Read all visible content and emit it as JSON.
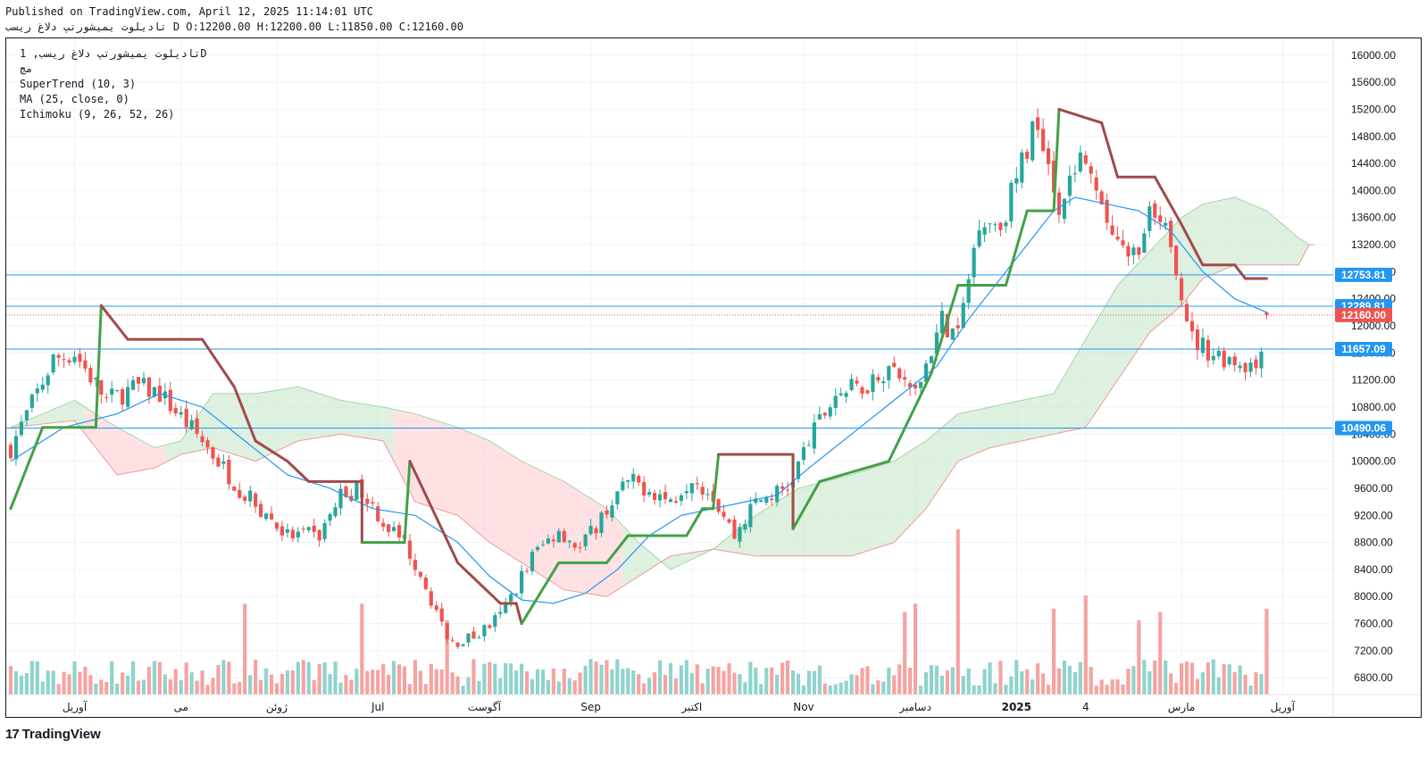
{
  "header": {
    "published": "Published on TradingView.com, April 12, 2025 11:14:01 UTC",
    "ohlc": "تادیلوت یمیشورتپ دلاغ ریسب D O:12200.00 H:12200.00 L:11850.00 C:12160.00"
  },
  "legend": {
    "symbol": "تادیلوت یمیشورتپ دلاغ ریسب, 1D",
    "sub": "مچ",
    "supertrend": "SuperTrend (10, 3)",
    "ma": "MA (25, close, 0)",
    "ichimoku": "Ichimoku (9, 26, 52, 26)"
  },
  "logo": {
    "text": "TradingView",
    "mark": "17"
  },
  "colors": {
    "up": "#26a69a",
    "down": "#ef5350",
    "up_vol": "#8fd3cc",
    "down_vol": "#f5a3a1",
    "supertrend_up": "#43a047",
    "supertrend_down": "#a04a4a",
    "ma": "#2196f3",
    "cloud_green": "#c8e6c9",
    "cloud_red": "#ffcdd2",
    "hline": "#2196f3",
    "price": "#ef5350"
  },
  "chart_data": {
    "type": "candlestick",
    "ylim": [
      6500,
      16250
    ],
    "y_ticks": [
      "16000.00",
      "15600.00",
      "15200.00",
      "14800.00",
      "14400.00",
      "14000.00",
      "13600.00",
      "13200.00",
      "12800.00",
      "12400.00",
      "12000.00",
      "11600.00",
      "11200.00",
      "10800.00",
      "10400.00",
      "10000.00",
      "9600.00",
      "9200.00",
      "8800.00",
      "8400.00",
      "8000.00",
      "7600.00",
      "7200.00",
      "6800.00"
    ],
    "x_labels": [
      "آوریل",
      "می",
      "ژوئن",
      "Jul",
      "آگوست",
      "Sep",
      "اکتبر",
      "Nov",
      "دسامبر",
      "2025",
      "4",
      "مارس",
      "آوریل"
    ],
    "horizontal_levels": [
      {
        "label": "12753.81",
        "value": 12753.81
      },
      {
        "label": "12289.81",
        "value": 12289.81
      },
      {
        "label": "11657.09",
        "value": 11657.09
      },
      {
        "label": "10490.06",
        "value": 10490.06
      }
    ],
    "last_price": {
      "label": "12160.00",
      "value": 12160.0
    },
    "last_ohlc": {
      "open": 12200.0,
      "high": 12200.0,
      "low": 11850.0,
      "close": 12160.0
    },
    "close_anchors": [
      [
        0,
        10200
      ],
      [
        8,
        11500
      ],
      [
        12,
        11600
      ],
      [
        18,
        10900
      ],
      [
        24,
        11100
      ],
      [
        28,
        11000
      ],
      [
        36,
        10300
      ],
      [
        44,
        9500
      ],
      [
        52,
        8900
      ],
      [
        58,
        8900
      ],
      [
        62,
        9500
      ],
      [
        66,
        9600
      ],
      [
        70,
        9100
      ],
      [
        74,
        8800
      ],
      [
        78,
        8200
      ],
      [
        82,
        7300
      ],
      [
        87,
        7400
      ],
      [
        92,
        7700
      ],
      [
        98,
        8600
      ],
      [
        103,
        9000
      ],
      [
        107,
        8700
      ],
      [
        112,
        9300
      ],
      [
        116,
        9700
      ],
      [
        120,
        9600
      ],
      [
        124,
        9400
      ],
      [
        128,
        9800
      ],
      [
        132,
        9500
      ],
      [
        136,
        8900
      ],
      [
        140,
        9400
      ],
      [
        146,
        9600
      ],
      [
        150,
        10300
      ],
      [
        155,
        11000
      ],
      [
        160,
        11100
      ],
      [
        165,
        11400
      ],
      [
        170,
        11000
      ],
      [
        175,
        12100
      ],
      [
        178,
        11800
      ],
      [
        182,
        13600
      ],
      [
        186,
        13500
      ],
      [
        190,
        14400
      ],
      [
        193,
        15100
      ],
      [
        197,
        13800
      ],
      [
        201,
        14500
      ],
      [
        205,
        13700
      ],
      [
        210,
        12900
      ],
      [
        214,
        13600
      ],
      [
        218,
        13300
      ],
      [
        222,
        11800
      ],
      [
        226,
        11600
      ],
      [
        230,
        11500
      ],
      [
        234,
        11400
      ],
      [
        236,
        12160
      ]
    ],
    "supertrend": [
      [
        0,
        9300,
        "up"
      ],
      [
        6,
        10500,
        "up"
      ],
      [
        16,
        10500,
        "up"
      ],
      [
        17,
        12300,
        "down"
      ],
      [
        22,
        11800,
        "down"
      ],
      [
        36,
        11800,
        "down"
      ],
      [
        42,
        11100,
        "down"
      ],
      [
        46,
        10300,
        "down"
      ],
      [
        52,
        10000,
        "down"
      ],
      [
        56,
        9700,
        "down"
      ],
      [
        66,
        9700,
        "down"
      ],
      [
        66,
        8800,
        "up"
      ],
      [
        74,
        8800,
        "up"
      ],
      [
        75,
        10000,
        "down"
      ],
      [
        84,
        8500,
        "down"
      ],
      [
        92,
        7900,
        "down"
      ],
      [
        95,
        7900,
        "down"
      ],
      [
        96,
        7600,
        "up"
      ],
      [
        103,
        8500,
        "up"
      ],
      [
        112,
        8500,
        "up"
      ],
      [
        116,
        8900,
        "up"
      ],
      [
        127,
        8900,
        "up"
      ],
      [
        130,
        9300,
        "up"
      ],
      [
        132,
        9300,
        "up"
      ],
      [
        133,
        10100,
        "down"
      ],
      [
        147,
        10100,
        "down"
      ],
      [
        147,
        9000,
        "up"
      ],
      [
        152,
        9700,
        "up"
      ],
      [
        165,
        10000,
        "up"
      ],
      [
        173,
        11300,
        "up"
      ],
      [
        178,
        12600,
        "up"
      ],
      [
        187,
        12600,
        "up"
      ],
      [
        191,
        13700,
        "up"
      ],
      [
        196,
        13700,
        "up"
      ],
      [
        197,
        15200,
        "down"
      ],
      [
        205,
        15000,
        "down"
      ],
      [
        208,
        14200,
        "down"
      ],
      [
        215,
        14200,
        "down"
      ],
      [
        220,
        13500,
        "down"
      ],
      [
        224,
        12900,
        "down"
      ],
      [
        230,
        12900,
        "down"
      ],
      [
        232,
        12700,
        "down"
      ],
      [
        236,
        12700,
        "down"
      ]
    ],
    "ma25": [
      [
        0,
        10000
      ],
      [
        10,
        10500
      ],
      [
        20,
        10700
      ],
      [
        28,
        11000
      ],
      [
        36,
        10800
      ],
      [
        44,
        10300
      ],
      [
        52,
        9800
      ],
      [
        60,
        9600
      ],
      [
        68,
        9300
      ],
      [
        76,
        9200
      ],
      [
        84,
        8800
      ],
      [
        90,
        8300
      ],
      [
        96,
        7950
      ],
      [
        102,
        7900
      ],
      [
        108,
        8050
      ],
      [
        114,
        8400
      ],
      [
        120,
        8900
      ],
      [
        126,
        9200
      ],
      [
        132,
        9300
      ],
      [
        138,
        9400
      ],
      [
        144,
        9500
      ],
      [
        150,
        9900
      ],
      [
        158,
        10400
      ],
      [
        166,
        10900
      ],
      [
        174,
        11400
      ],
      [
        180,
        12100
      ],
      [
        186,
        12700
      ],
      [
        192,
        13300
      ],
      [
        196,
        13700
      ],
      [
        200,
        13900
      ],
      [
        206,
        13800
      ],
      [
        212,
        13700
      ],
      [
        218,
        13400
      ],
      [
        224,
        12800
      ],
      [
        230,
        12400
      ],
      [
        236,
        12200
      ]
    ],
    "cloud_top": [
      [
        0,
        10500
      ],
      [
        12,
        10900
      ],
      [
        20,
        10500
      ],
      [
        27,
        10200
      ],
      [
        32,
        10300
      ],
      [
        38,
        11000
      ],
      [
        46,
        11000
      ],
      [
        54,
        11100
      ],
      [
        62,
        10900
      ],
      [
        70,
        10800
      ],
      [
        76,
        10700
      ],
      [
        84,
        10500
      ],
      [
        90,
        10300
      ],
      [
        96,
        10000
      ],
      [
        104,
        9700
      ],
      [
        112,
        9300
      ],
      [
        118,
        8800
      ],
      [
        124,
        8400
      ],
      [
        132,
        8700
      ],
      [
        140,
        9200
      ],
      [
        148,
        9600
      ],
      [
        158,
        9800
      ],
      [
        166,
        10000
      ],
      [
        172,
        10300
      ],
      [
        178,
        10700
      ],
      [
        184,
        10800
      ],
      [
        190,
        10900
      ],
      [
        196,
        11000
      ],
      [
        202,
        11800
      ],
      [
        208,
        12600
      ],
      [
        214,
        13100
      ],
      [
        220,
        13600
      ],
      [
        224,
        13800
      ],
      [
        230,
        13900
      ],
      [
        236,
        13700
      ],
      [
        242,
        13300
      ],
      [
        244,
        13200
      ]
    ],
    "cloud_bottom": [
      [
        0,
        10500
      ],
      [
        12,
        10600
      ],
      [
        20,
        9800
      ],
      [
        27,
        9900
      ],
      [
        32,
        10100
      ],
      [
        38,
        10200
      ],
      [
        46,
        10000
      ],
      [
        54,
        10300
      ],
      [
        62,
        10400
      ],
      [
        70,
        10300
      ],
      [
        76,
        9400
      ],
      [
        84,
        9200
      ],
      [
        90,
        8800
      ],
      [
        96,
        8500
      ],
      [
        104,
        8100
      ],
      [
        112,
        8000
      ],
      [
        118,
        8300
      ],
      [
        124,
        8600
      ],
      [
        132,
        8700
      ],
      [
        140,
        8600
      ],
      [
        148,
        8600
      ],
      [
        158,
        8600
      ],
      [
        166,
        8800
      ],
      [
        172,
        9300
      ],
      [
        178,
        10000
      ],
      [
        184,
        10200
      ],
      [
        190,
        10300
      ],
      [
        196,
        10400
      ],
      [
        202,
        10500
      ],
      [
        208,
        11200
      ],
      [
        214,
        11900
      ],
      [
        220,
        12300
      ],
      [
        224,
        12700
      ],
      [
        230,
        12900
      ],
      [
        236,
        12900
      ],
      [
        242,
        12900
      ],
      [
        244,
        13200
      ]
    ],
    "volume_spikes": [
      [
        44,
        0.55
      ],
      [
        66,
        0.55
      ],
      [
        82,
        0.45
      ],
      [
        178,
        1.0
      ],
      [
        168,
        0.5
      ],
      [
        170,
        0.55
      ],
      [
        196,
        0.52
      ],
      [
        202,
        0.6
      ],
      [
        212,
        0.45
      ],
      [
        216,
        0.5
      ],
      [
        236,
        0.52
      ]
    ]
  }
}
